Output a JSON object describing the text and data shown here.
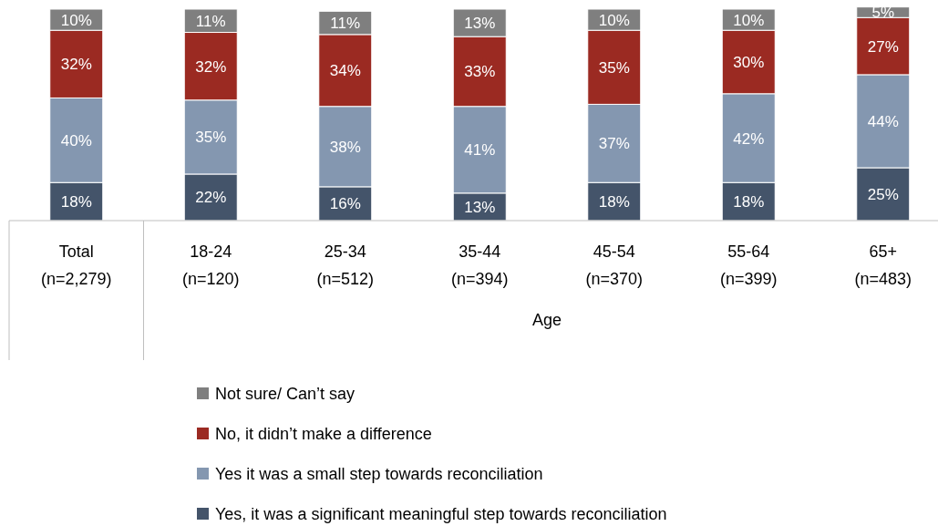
{
  "chart_data": {
    "type": "bar",
    "stacked": true,
    "legend": "bottom",
    "categories": [
      "Total\n(n=2,279)",
      "18-24\n(n=120)",
      "25-34\n(n=512)",
      "35-44\n(n=394)",
      "45-54\n(n=370)",
      "55-64\n(n=399)",
      "65+\n(n=483)"
    ],
    "series": [
      {
        "name": "Yes, it was a significant meaningful step towards reconciliation",
        "color": "#44546a",
        "values": [
          18,
          22,
          16,
          13,
          18,
          18,
          25
        ],
        "value_labels": [
          "18%",
          "22%",
          "16%",
          "13%",
          "18%",
          "18%",
          "25%"
        ]
      },
      {
        "name": "Yes it was a small step towards reconciliation",
        "color": "#8497b0",
        "values": [
          40,
          35,
          38,
          41,
          37,
          42,
          44
        ],
        "value_labels": [
          "40%",
          "35%",
          "38%",
          "41%",
          "37%",
          "42%",
          "44%"
        ]
      },
      {
        "name": "No, it didn’t make a difference",
        "color": "#9b2a22",
        "values": [
          32,
          32,
          34,
          33,
          35,
          30,
          27
        ],
        "value_labels": [
          "32%",
          "32%",
          "34%",
          "33%",
          "35%",
          "30%",
          "27%"
        ]
      },
      {
        "name": "Not sure/ Can’t say",
        "color": "#7f7f7f",
        "values": [
          10,
          11,
          11,
          13,
          10,
          10,
          5
        ],
        "value_labels": [
          "10%",
          "11%",
          "11%",
          "13%",
          "10%",
          "10%",
          "5%"
        ]
      }
    ],
    "annotations": [
      "Age"
    ]
  }
}
